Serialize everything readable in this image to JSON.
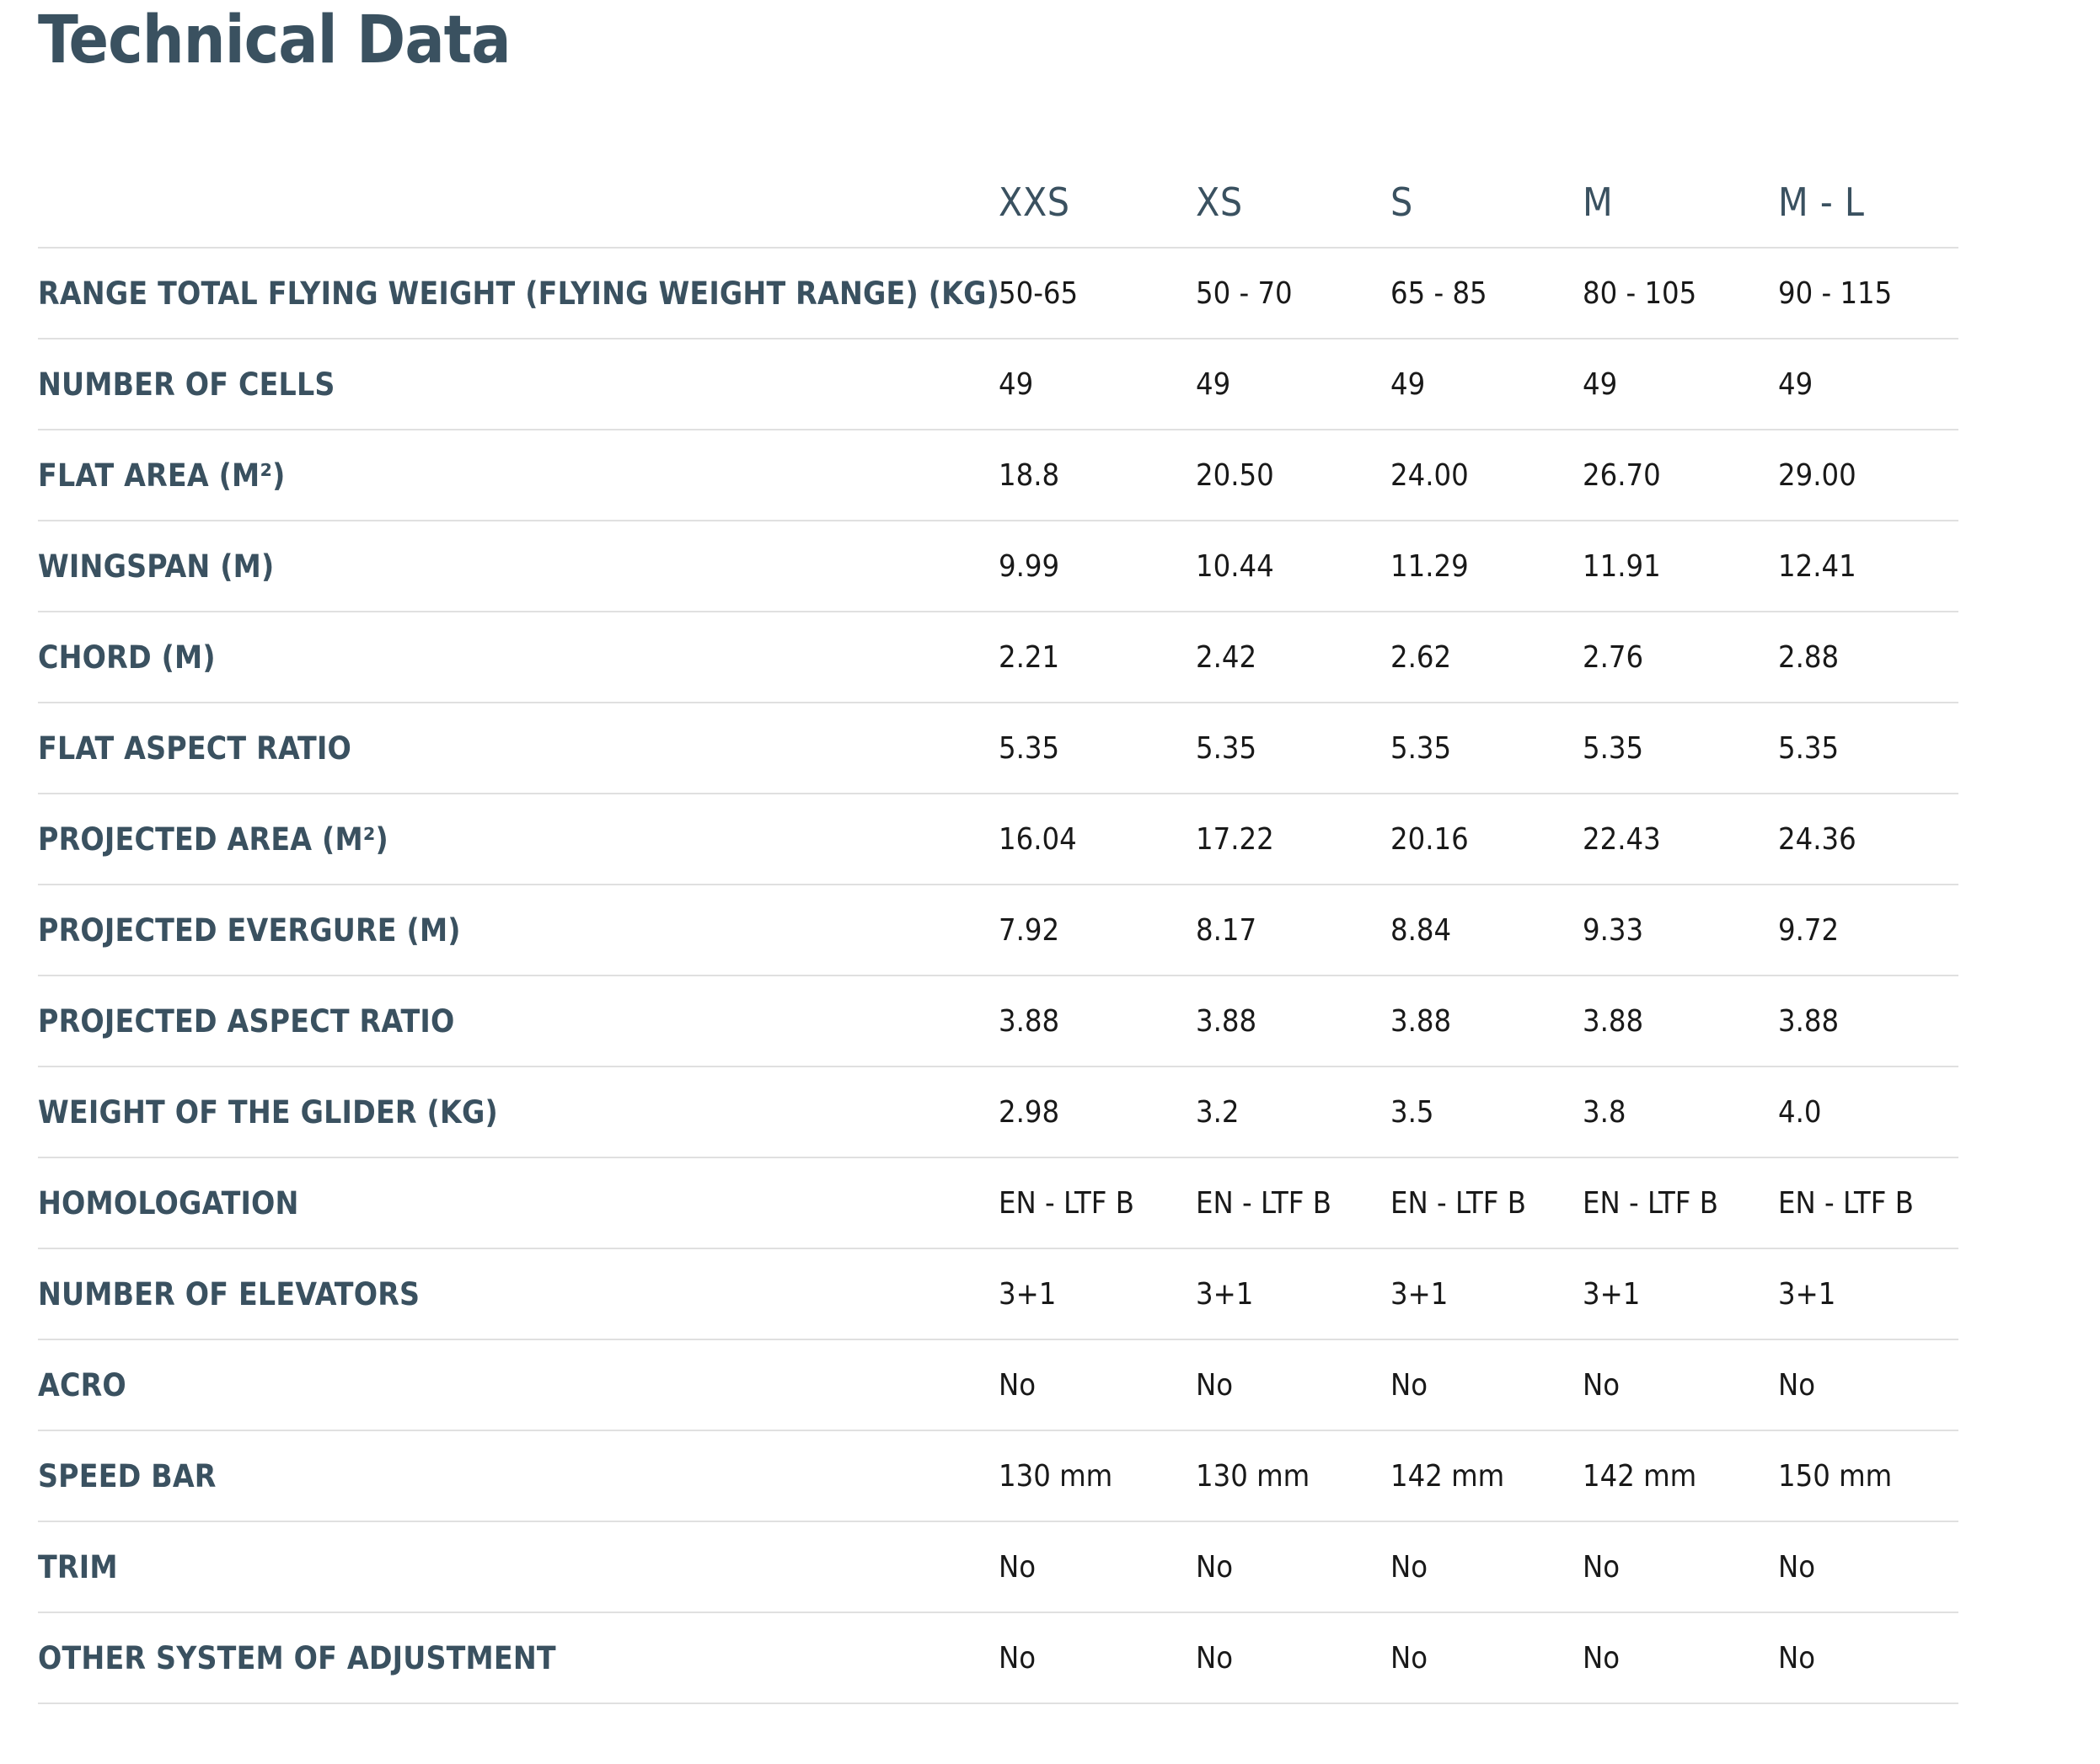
{
  "page": {
    "title": "Technical Data"
  },
  "colors": {
    "heading_text": "#3a5160",
    "value_text": "#191919",
    "divider": "#e0e0e0",
    "background": "#ffffff"
  },
  "table": {
    "columns": [
      "XXS",
      "XS",
      "S",
      "M",
      "M - L"
    ],
    "rows": [
      {
        "label": "RANGE TOTAL FLYING WEIGHT (FLYING WEIGHT RANGE) (KG)",
        "values": [
          "50-65",
          "50 - 70",
          "65 - 85",
          "80 - 105",
          "90 - 115"
        ]
      },
      {
        "label": "NUMBER OF CELLS",
        "values": [
          "49",
          "49",
          "49",
          "49",
          "49"
        ]
      },
      {
        "label": "FLAT AREA (M²)",
        "values": [
          "18.8",
          "20.50",
          "24.00",
          "26.70",
          "29.00"
        ]
      },
      {
        "label": "WINGSPAN (M)",
        "values": [
          "9.99",
          "10.44",
          "11.29",
          "11.91",
          "12.41"
        ]
      },
      {
        "label": "CHORD (M)",
        "values": [
          "2.21",
          "2.42",
          "2.62",
          "2.76",
          "2.88"
        ]
      },
      {
        "label": "FLAT ASPECT RATIO",
        "values": [
          "5.35",
          "5.35",
          "5.35",
          "5.35",
          "5.35"
        ]
      },
      {
        "label": "PROJECTED AREA (M²)",
        "values": [
          "16.04",
          "17.22",
          "20.16",
          "22.43",
          "24.36"
        ]
      },
      {
        "label": "PROJECTED EVERGURE (M)",
        "values": [
          "7.92",
          "8.17",
          "8.84",
          "9.33",
          "9.72"
        ]
      },
      {
        "label": "PROJECTED ASPECT RATIO",
        "values": [
          "3.88",
          "3.88",
          "3.88",
          "3.88",
          "3.88"
        ]
      },
      {
        "label": "WEIGHT OF THE GLIDER (KG)",
        "values": [
          "2.98",
          "3.2",
          "3.5",
          "3.8",
          "4.0"
        ]
      },
      {
        "label": "HOMOLOGATION",
        "values": [
          "EN - LTF B",
          "EN - LTF B",
          "EN - LTF B",
          "EN - LTF B",
          "EN - LTF B"
        ]
      },
      {
        "label": "NUMBER OF ELEVATORS",
        "values": [
          "3+1",
          "3+1",
          "3+1",
          "3+1",
          "3+1"
        ]
      },
      {
        "label": "ACRO",
        "values": [
          "No",
          "No",
          "No",
          "No",
          "No"
        ]
      },
      {
        "label": "SPEED BAR",
        "values": [
          "130 mm",
          "130 mm",
          "142 mm",
          "142 mm",
          "150 mm"
        ]
      },
      {
        "label": "TRIM",
        "values": [
          "No",
          "No",
          "No",
          "No",
          "No"
        ]
      },
      {
        "label": "OTHER SYSTEM OF ADJUSTMENT",
        "values": [
          "No",
          "No",
          "No",
          "No",
          "No"
        ]
      }
    ]
  }
}
